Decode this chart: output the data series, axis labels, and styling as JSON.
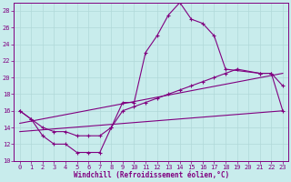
{
  "xlabel": "Windchill (Refroidissement éolien,°C)",
  "background_color": "#c8ecec",
  "grid_color": "#b0d8d8",
  "line_color": "#800080",
  "xlim": [
    -0.5,
    23.5
  ],
  "ylim": [
    10,
    29
  ],
  "yticks": [
    10,
    12,
    14,
    16,
    18,
    20,
    22,
    24,
    26,
    28
  ],
  "xticks": [
    0,
    1,
    2,
    3,
    4,
    5,
    6,
    7,
    8,
    9,
    10,
    11,
    12,
    13,
    14,
    15,
    16,
    17,
    18,
    19,
    20,
    21,
    22,
    23
  ],
  "curve1_x": [
    0,
    1,
    2,
    3,
    4,
    5,
    6,
    7,
    8,
    9,
    10,
    11,
    12,
    13,
    14,
    15,
    16,
    17,
    18,
    21,
    22,
    23
  ],
  "curve1_y": [
    16,
    15,
    13,
    12,
    12,
    11,
    11,
    11,
    14,
    17,
    17,
    23,
    25,
    27.5,
    29,
    27,
    26.5,
    25,
    21,
    20.5,
    20.5,
    19
  ],
  "curve2_x": [
    0,
    1,
    2,
    3,
    4,
    5,
    6,
    7,
    8,
    9,
    10,
    11,
    12,
    13,
    14,
    15,
    16,
    17,
    18,
    19,
    21,
    22,
    23
  ],
  "curve2_y": [
    16,
    15,
    14,
    13.5,
    13.5,
    13,
    13,
    13,
    14,
    16,
    16.5,
    17,
    17.5,
    18,
    18.5,
    19,
    19.5,
    20,
    20.5,
    21,
    20.5,
    20.5,
    16
  ],
  "curve3_x": [
    0,
    23
  ],
  "curve3_y": [
    13.5,
    16
  ],
  "curve4_x": [
    0,
    23
  ],
  "curve4_y": [
    14.5,
    20.5
  ]
}
